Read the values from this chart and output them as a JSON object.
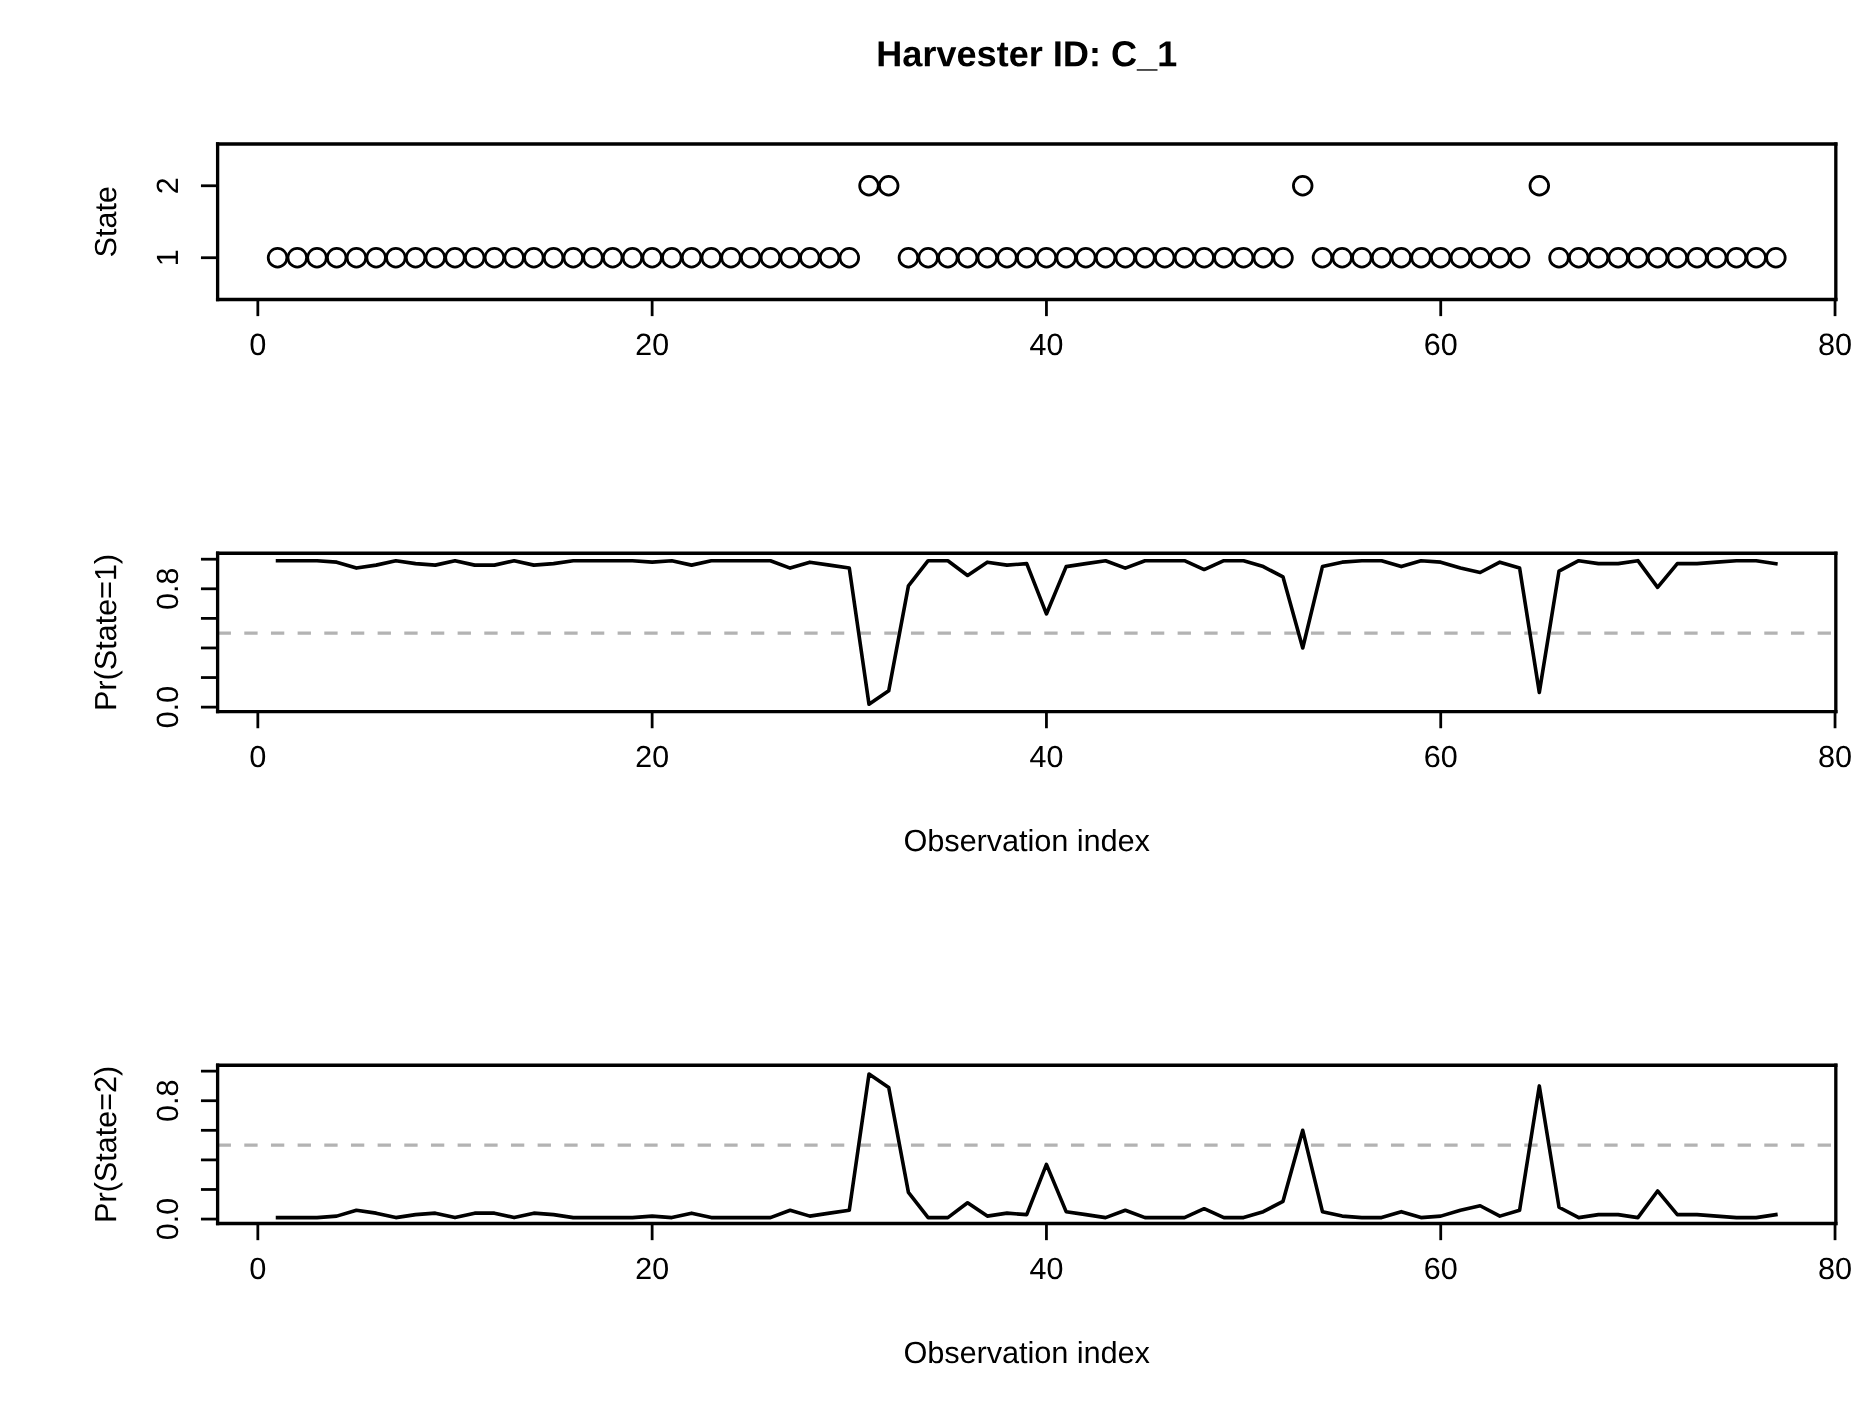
{
  "chart_data": [
    {
      "type": "scatter",
      "title": "Harvester ID: C_1",
      "ylabel": "State",
      "marker": "circle",
      "x": [
        1,
        2,
        3,
        4,
        5,
        6,
        7,
        8,
        9,
        10,
        11,
        12,
        13,
        14,
        15,
        16,
        17,
        18,
        19,
        20,
        21,
        22,
        23,
        24,
        25,
        26,
        27,
        28,
        29,
        30,
        31,
        32,
        33,
        34,
        35,
        36,
        37,
        38,
        39,
        40,
        41,
        42,
        43,
        44,
        45,
        46,
        47,
        48,
        49,
        50,
        51,
        52,
        53,
        54,
        55,
        56,
        57,
        58,
        59,
        60,
        61,
        62,
        63,
        64,
        65,
        66,
        67,
        68,
        69,
        70,
        71,
        72,
        73,
        74,
        75,
        76,
        77
      ],
      "series": [
        {
          "color": "#000000",
          "values": [
            1,
            1,
            1,
            1,
            1,
            1,
            1,
            1,
            1,
            1,
            1,
            1,
            1,
            1,
            1,
            1,
            1,
            1,
            1,
            1,
            1,
            1,
            1,
            1,
            1,
            1,
            1,
            1,
            1,
            1,
            2,
            2,
            1,
            1,
            1,
            1,
            1,
            1,
            1,
            1,
            1,
            1,
            1,
            1,
            1,
            1,
            1,
            1,
            1,
            1,
            1,
            1,
            2,
            1,
            1,
            1,
            1,
            1,
            1,
            1,
            1,
            1,
            1,
            1,
            2,
            1,
            1,
            1,
            1,
            1,
            1,
            1,
            1,
            1,
            1,
            1,
            1
          ]
        }
      ],
      "xlim": [
        -2.04,
        80.04
      ],
      "xticks": [
        0,
        20,
        40,
        60,
        80
      ],
      "ylim": [
        0.42,
        2.58
      ],
      "yticks": [
        1,
        2
      ]
    },
    {
      "type": "line",
      "xlabel": "Observation index",
      "ylabel": "Pr(State=1)",
      "line_style": "solid",
      "x": [
        1,
        2,
        3,
        4,
        5,
        6,
        7,
        8,
        9,
        10,
        11,
        12,
        13,
        14,
        15,
        16,
        17,
        18,
        19,
        20,
        21,
        22,
        23,
        24,
        25,
        26,
        27,
        28,
        29,
        30,
        31,
        32,
        33,
        34,
        35,
        36,
        37,
        38,
        39,
        40,
        41,
        42,
        43,
        44,
        45,
        46,
        47,
        48,
        49,
        50,
        51,
        52,
        53,
        54,
        55,
        56,
        57,
        58,
        59,
        60,
        61,
        62,
        63,
        64,
        65,
        66,
        67,
        68,
        69,
        70,
        71,
        72,
        73,
        74,
        75,
        76,
        77
      ],
      "series": [
        {
          "color": "#000000",
          "values": [
            0.99,
            0.99,
            0.99,
            0.98,
            0.94,
            0.96,
            0.99,
            0.97,
            0.96,
            0.99,
            0.96,
            0.96,
            0.99,
            0.96,
            0.97,
            0.99,
            0.99,
            0.99,
            0.99,
            0.98,
            0.99,
            0.96,
            0.99,
            0.99,
            0.99,
            0.99,
            0.94,
            0.98,
            0.96,
            0.94,
            0.02,
            0.11,
            0.82,
            0.99,
            0.99,
            0.89,
            0.98,
            0.96,
            0.97,
            0.63,
            0.95,
            0.97,
            0.99,
            0.94,
            0.99,
            0.99,
            0.99,
            0.93,
            0.99,
            0.99,
            0.95,
            0.88,
            0.4,
            0.95,
            0.98,
            0.99,
            0.99,
            0.95,
            0.99,
            0.98,
            0.94,
            0.91,
            0.98,
            0.94,
            0.1,
            0.92,
            0.99,
            0.97,
            0.97,
            0.99,
            0.81,
            0.97,
            0.97,
            0.98,
            0.99,
            0.99,
            0.97
          ]
        }
      ],
      "ref_lines": [
        {
          "axis": "y",
          "value": 0.5,
          "color": "#b3b3b3",
          "line_style": "dashed"
        }
      ],
      "xlim": [
        -2.04,
        80.04
      ],
      "xticks": [
        0,
        20,
        40,
        60,
        80
      ],
      "ylim": [
        -0.03,
        1.04
      ],
      "yticks": [
        {
          "value": 0,
          "label": "0.0"
        },
        {
          "value": 0.2,
          "label": null
        },
        {
          "value": 0.4,
          "label": null
        },
        {
          "value": 0.6,
          "label": null
        },
        {
          "value": 0.8,
          "label": "0.8"
        },
        {
          "value": 1.0,
          "label": null
        }
      ]
    },
    {
      "type": "line",
      "xlabel": "Observation index",
      "ylabel": "Pr(State=2)",
      "line_style": "solid",
      "x": [
        1,
        2,
        3,
        4,
        5,
        6,
        7,
        8,
        9,
        10,
        11,
        12,
        13,
        14,
        15,
        16,
        17,
        18,
        19,
        20,
        21,
        22,
        23,
        24,
        25,
        26,
        27,
        28,
        29,
        30,
        31,
        32,
        33,
        34,
        35,
        36,
        37,
        38,
        39,
        40,
        41,
        42,
        43,
        44,
        45,
        46,
        47,
        48,
        49,
        50,
        51,
        52,
        53,
        54,
        55,
        56,
        57,
        58,
        59,
        60,
        61,
        62,
        63,
        64,
        65,
        66,
        67,
        68,
        69,
        70,
        71,
        72,
        73,
        74,
        75,
        76,
        77
      ],
      "series": [
        {
          "color": "#000000",
          "values": [
            0.01,
            0.01,
            0.01,
            0.02,
            0.06,
            0.04,
            0.01,
            0.03,
            0.04,
            0.01,
            0.04,
            0.04,
            0.01,
            0.04,
            0.03,
            0.01,
            0.01,
            0.01,
            0.01,
            0.02,
            0.01,
            0.04,
            0.01,
            0.01,
            0.01,
            0.01,
            0.06,
            0.02,
            0.04,
            0.06,
            0.98,
            0.89,
            0.18,
            0.01,
            0.01,
            0.11,
            0.02,
            0.04,
            0.03,
            0.37,
            0.05,
            0.03,
            0.01,
            0.06,
            0.01,
            0.01,
            0.01,
            0.07,
            0.01,
            0.01,
            0.05,
            0.12,
            0.6,
            0.05,
            0.02,
            0.01,
            0.01,
            0.05,
            0.01,
            0.02,
            0.06,
            0.09,
            0.02,
            0.06,
            0.9,
            0.08,
            0.01,
            0.03,
            0.03,
            0.01,
            0.19,
            0.03,
            0.03,
            0.02,
            0.01,
            0.01,
            0.03
          ]
        }
      ],
      "ref_lines": [
        {
          "axis": "y",
          "value": 0.5,
          "color": "#b3b3b3",
          "line_style": "dashed"
        }
      ],
      "xlim": [
        -2.04,
        80.04
      ],
      "xticks": [
        0,
        20,
        40,
        60,
        80
      ],
      "ylim": [
        -0.03,
        1.04
      ],
      "yticks": [
        {
          "value": 0,
          "label": "0.0"
        },
        {
          "value": 0.2,
          "label": null
        },
        {
          "value": 0.4,
          "label": null
        },
        {
          "value": 0.6,
          "label": null
        },
        {
          "value": 0.8,
          "label": "0.8"
        },
        {
          "value": 1.0,
          "label": null
        }
      ]
    }
  ]
}
